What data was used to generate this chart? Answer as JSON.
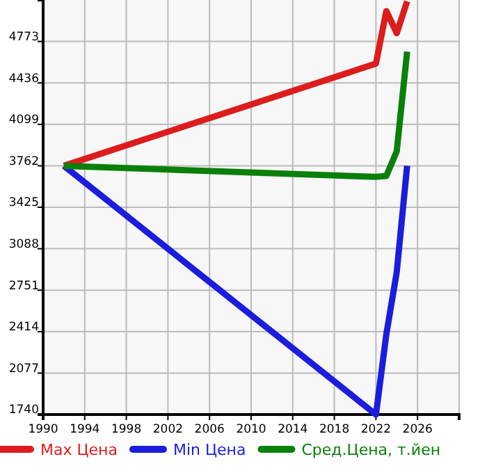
{
  "chart_data": {
    "type": "line",
    "xlim": [
      1990,
      2030
    ],
    "xticks": [
      1990,
      1994,
      1998,
      2002,
      2006,
      2010,
      2014,
      2018,
      2022,
      2026,
      {
        "value": 2030,
        "label": null
      }
    ],
    "ylim": [
      1740,
      5110
    ],
    "yticks": [
      1740,
      2077,
      2414,
      2751,
      3088,
      3425,
      3762,
      4099,
      4436,
      4773
    ],
    "grid": true,
    "legend": "bottom",
    "marker": "none",
    "line_style": "solid",
    "series": [
      {
        "name": "Max Цена",
        "color": "#dd1c1c",
        "x": [
          1992,
          2022,
          2023,
          2024,
          2025
        ],
        "values": [
          3762,
          4593,
          5020,
          4840,
          5100
        ]
      },
      {
        "name": "Min Цена",
        "color": "#1c1cdd",
        "x": [
          1992,
          2022,
          2023,
          2024,
          2025
        ],
        "values": [
          3762,
          1740,
          2392,
          2897,
          3762
        ]
      },
      {
        "name": "Сред.Цена, т.йен",
        "color": "#0a800a",
        "x": [
          1992,
          2022,
          2023,
          2024,
          2025
        ],
        "values": [
          3762,
          3672,
          3680,
          3880,
          4690
        ]
      }
    ]
  }
}
